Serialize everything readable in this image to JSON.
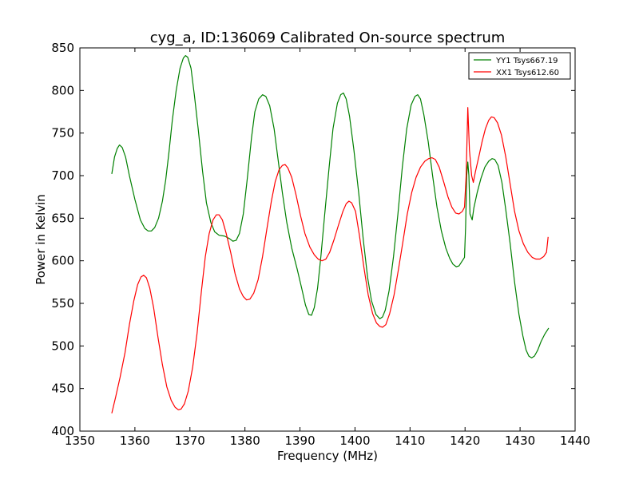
{
  "chart_data": {
    "type": "line",
    "title": "cyg_a, ID:136069 Calibrated On-source spectrum",
    "xlabel": "Frequency (MHz)",
    "ylabel": "Power in Kelvin",
    "xlim": [
      1350,
      1440
    ],
    "ylim": [
      400,
      850
    ],
    "xticks": [
      1350,
      1360,
      1370,
      1380,
      1390,
      1400,
      1410,
      1420,
      1430,
      1440
    ],
    "yticks": [
      400,
      450,
      500,
      550,
      600,
      650,
      700,
      750,
      800,
      850
    ],
    "grid": false,
    "legend_position": "top-right",
    "series": [
      {
        "name": "YY1 Tsys667.19",
        "color": "#008000",
        "points": [
          [
            1355.8,
            702
          ],
          [
            1356.3,
            722
          ],
          [
            1356.8,
            732
          ],
          [
            1357.2,
            736
          ],
          [
            1357.7,
            733
          ],
          [
            1358.3,
            722
          ],
          [
            1359.0,
            700
          ],
          [
            1360.0,
            672
          ],
          [
            1361.0,
            648
          ],
          [
            1361.8,
            638
          ],
          [
            1362.4,
            635
          ],
          [
            1363.0,
            635
          ],
          [
            1363.6,
            639
          ],
          [
            1364.3,
            650
          ],
          [
            1365.0,
            670
          ],
          [
            1365.6,
            695
          ],
          [
            1366.2,
            728
          ],
          [
            1366.8,
            765
          ],
          [
            1367.5,
            800
          ],
          [
            1368.2,
            826
          ],
          [
            1368.8,
            838
          ],
          [
            1369.2,
            841
          ],
          [
            1369.6,
            839
          ],
          [
            1370.2,
            826
          ],
          [
            1370.8,
            795
          ],
          [
            1371.5,
            755
          ],
          [
            1372.3,
            705
          ],
          [
            1373.0,
            668
          ],
          [
            1373.8,
            645
          ],
          [
            1374.5,
            634
          ],
          [
            1375.3,
            630
          ],
          [
            1376.3,
            629
          ],
          [
            1377.2,
            626
          ],
          [
            1377.8,
            623
          ],
          [
            1378.4,
            624
          ],
          [
            1379.0,
            632
          ],
          [
            1379.7,
            655
          ],
          [
            1380.4,
            695
          ],
          [
            1381.2,
            745
          ],
          [
            1381.8,
            775
          ],
          [
            1382.5,
            790
          ],
          [
            1383.2,
            795
          ],
          [
            1383.8,
            793
          ],
          [
            1384.5,
            782
          ],
          [
            1385.3,
            755
          ],
          [
            1386.0,
            720
          ],
          [
            1386.8,
            680
          ],
          [
            1387.6,
            645
          ],
          [
            1388.5,
            615
          ],
          [
            1389.5,
            590
          ],
          [
            1390.3,
            568
          ],
          [
            1391.0,
            548
          ],
          [
            1391.6,
            537
          ],
          [
            1392.1,
            536
          ],
          [
            1392.6,
            545
          ],
          [
            1393.2,
            568
          ],
          [
            1393.8,
            605
          ],
          [
            1394.5,
            655
          ],
          [
            1395.3,
            710
          ],
          [
            1396.0,
            755
          ],
          [
            1396.8,
            785
          ],
          [
            1397.4,
            795
          ],
          [
            1397.9,
            797
          ],
          [
            1398.4,
            790
          ],
          [
            1399.0,
            770
          ],
          [
            1399.8,
            730
          ],
          [
            1400.7,
            678
          ],
          [
            1401.5,
            625
          ],
          [
            1402.3,
            580
          ],
          [
            1403.0,
            553
          ],
          [
            1403.8,
            537
          ],
          [
            1404.5,
            532
          ],
          [
            1405.0,
            534
          ],
          [
            1405.5,
            542
          ],
          [
            1406.2,
            565
          ],
          [
            1407.0,
            605
          ],
          [
            1407.8,
            655
          ],
          [
            1408.6,
            710
          ],
          [
            1409.4,
            755
          ],
          [
            1410.2,
            783
          ],
          [
            1410.9,
            793
          ],
          [
            1411.4,
            795
          ],
          [
            1411.9,
            790
          ],
          [
            1412.5,
            772
          ],
          [
            1413.3,
            740
          ],
          [
            1414.1,
            700
          ],
          [
            1414.9,
            663
          ],
          [
            1415.7,
            635
          ],
          [
            1416.5,
            615
          ],
          [
            1417.2,
            603
          ],
          [
            1417.8,
            596
          ],
          [
            1418.4,
            593
          ],
          [
            1418.9,
            594
          ],
          [
            1419.5,
            600
          ],
          [
            1419.9,
            604
          ],
          [
            1420.1,
            640
          ],
          [
            1420.3,
            700
          ],
          [
            1420.5,
            716
          ],
          [
            1420.7,
            700
          ],
          [
            1420.9,
            655
          ],
          [
            1421.3,
            648
          ],
          [
            1421.6,
            662
          ],
          [
            1422.2,
            680
          ],
          [
            1422.9,
            697
          ],
          [
            1423.6,
            710
          ],
          [
            1424.3,
            717
          ],
          [
            1424.9,
            720
          ],
          [
            1425.4,
            719
          ],
          [
            1426.0,
            712
          ],
          [
            1426.7,
            692
          ],
          [
            1427.4,
            660
          ],
          [
            1428.2,
            620
          ],
          [
            1429.0,
            575
          ],
          [
            1429.8,
            537
          ],
          [
            1430.5,
            512
          ],
          [
            1431.1,
            495
          ],
          [
            1431.6,
            488
          ],
          [
            1432.1,
            486
          ],
          [
            1432.6,
            488
          ],
          [
            1433.2,
            495
          ],
          [
            1433.8,
            505
          ],
          [
            1434.5,
            514
          ],
          [
            1435.2,
            521
          ]
        ]
      },
      {
        "name": "XX1 Tsys612.60",
        "color": "#ff0000",
        "points": [
          [
            1355.8,
            421
          ],
          [
            1356.5,
            440
          ],
          [
            1357.3,
            463
          ],
          [
            1358.2,
            492
          ],
          [
            1359.0,
            525
          ],
          [
            1359.8,
            553
          ],
          [
            1360.5,
            572
          ],
          [
            1361.1,
            581
          ],
          [
            1361.6,
            583
          ],
          [
            1362.1,
            580
          ],
          [
            1362.7,
            568
          ],
          [
            1363.4,
            545
          ],
          [
            1364.2,
            510
          ],
          [
            1365.0,
            478
          ],
          [
            1365.8,
            452
          ],
          [
            1366.6,
            436
          ],
          [
            1367.3,
            428
          ],
          [
            1367.9,
            425
          ],
          [
            1368.4,
            426
          ],
          [
            1369.0,
            432
          ],
          [
            1369.7,
            447
          ],
          [
            1370.5,
            475
          ],
          [
            1371.3,
            515
          ],
          [
            1372.1,
            565
          ],
          [
            1372.8,
            605
          ],
          [
            1373.5,
            632
          ],
          [
            1374.2,
            648
          ],
          [
            1374.8,
            654
          ],
          [
            1375.3,
            654
          ],
          [
            1375.9,
            648
          ],
          [
            1376.6,
            632
          ],
          [
            1377.4,
            610
          ],
          [
            1378.2,
            585
          ],
          [
            1379.0,
            567
          ],
          [
            1379.7,
            558
          ],
          [
            1380.3,
            554
          ],
          [
            1380.9,
            555
          ],
          [
            1381.6,
            562
          ],
          [
            1382.4,
            578
          ],
          [
            1383.2,
            605
          ],
          [
            1384.0,
            638
          ],
          [
            1384.8,
            670
          ],
          [
            1385.5,
            693
          ],
          [
            1386.2,
            707
          ],
          [
            1386.8,
            712
          ],
          [
            1387.3,
            713
          ],
          [
            1387.8,
            709
          ],
          [
            1388.5,
            698
          ],
          [
            1389.3,
            677
          ],
          [
            1390.1,
            653
          ],
          [
            1390.9,
            632
          ],
          [
            1391.8,
            616
          ],
          [
            1392.6,
            607
          ],
          [
            1393.3,
            602
          ],
          [
            1394.0,
            600
          ],
          [
            1394.7,
            602
          ],
          [
            1395.4,
            610
          ],
          [
            1396.2,
            625
          ],
          [
            1397.0,
            642
          ],
          [
            1397.8,
            658
          ],
          [
            1398.4,
            667
          ],
          [
            1398.9,
            670
          ],
          [
            1399.4,
            668
          ],
          [
            1400.1,
            658
          ],
          [
            1400.8,
            630
          ],
          [
            1401.6,
            593
          ],
          [
            1402.4,
            560
          ],
          [
            1403.2,
            538
          ],
          [
            1403.9,
            527
          ],
          [
            1404.5,
            523
          ],
          [
            1405.0,
            522
          ],
          [
            1405.6,
            525
          ],
          [
            1406.3,
            538
          ],
          [
            1407.1,
            560
          ],
          [
            1407.9,
            590
          ],
          [
            1408.7,
            622
          ],
          [
            1409.5,
            655
          ],
          [
            1410.3,
            680
          ],
          [
            1411.1,
            698
          ],
          [
            1411.9,
            710
          ],
          [
            1412.7,
            717
          ],
          [
            1413.4,
            720
          ],
          [
            1414.0,
            721
          ],
          [
            1414.6,
            719
          ],
          [
            1415.3,
            710
          ],
          [
            1416.1,
            693
          ],
          [
            1416.9,
            675
          ],
          [
            1417.6,
            663
          ],
          [
            1418.3,
            656
          ],
          [
            1418.9,
            655
          ],
          [
            1419.5,
            658
          ],
          [
            1419.9,
            663
          ],
          [
            1420.2,
            700
          ],
          [
            1420.5,
            780
          ],
          [
            1420.8,
            730
          ],
          [
            1421.2,
            700
          ],
          [
            1421.5,
            692
          ],
          [
            1421.9,
            705
          ],
          [
            1422.5,
            722
          ],
          [
            1423.1,
            740
          ],
          [
            1423.7,
            755
          ],
          [
            1424.3,
            765
          ],
          [
            1424.8,
            769
          ],
          [
            1425.3,
            768
          ],
          [
            1425.9,
            762
          ],
          [
            1426.6,
            748
          ],
          [
            1427.4,
            722
          ],
          [
            1428.2,
            690
          ],
          [
            1429.0,
            658
          ],
          [
            1429.8,
            635
          ],
          [
            1430.6,
            620
          ],
          [
            1431.4,
            610
          ],
          [
            1432.2,
            604
          ],
          [
            1432.9,
            602
          ],
          [
            1433.6,
            602
          ],
          [
            1434.3,
            605
          ],
          [
            1434.8,
            610
          ],
          [
            1435.1,
            628
          ]
        ]
      }
    ]
  }
}
